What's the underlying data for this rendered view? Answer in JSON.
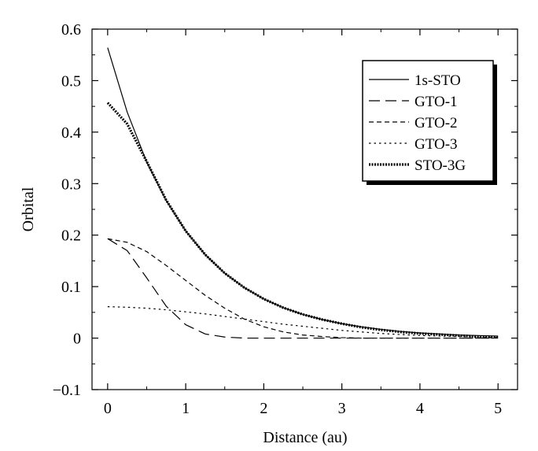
{
  "chart_data": {
    "type": "line",
    "title": "",
    "xlabel": "Distance (au)",
    "ylabel": "Orbital",
    "xlim": [
      -0.2,
      5.25
    ],
    "ylim": [
      -0.1,
      0.6
    ],
    "xticks": [
      0,
      1,
      2,
      3,
      4,
      5
    ],
    "xtick_labels": [
      "0",
      "1",
      "2",
      "3",
      "4",
      "5"
    ],
    "yticks": [
      -0.1,
      0,
      0.1,
      0.2,
      0.3,
      0.4,
      0.5,
      0.6
    ],
    "ytick_labels": [
      "−0.1",
      "0",
      "0.1",
      "0.2",
      "0.3",
      "0.4",
      "0.5",
      "0.6"
    ],
    "grid": false,
    "legend_position": "top-right",
    "x": [
      0,
      0.25,
      0.5,
      0.75,
      1.0,
      1.25,
      1.5,
      1.75,
      2.0,
      2.25,
      2.5,
      2.75,
      3.0,
      3.25,
      3.5,
      3.75,
      4.0,
      4.25,
      4.5,
      4.75,
      5.0
    ],
    "series": [
      {
        "name": "1s-STO",
        "dash": "solid",
        "values": [
          0.564,
          0.439,
          0.342,
          0.267,
          0.208,
          0.162,
          0.126,
          0.098,
          0.076,
          0.059,
          0.046,
          0.036,
          0.028,
          0.022,
          0.017,
          0.013,
          0.01,
          0.008,
          0.006,
          0.005,
          0.004
        ]
      },
      {
        "name": "GTO-1",
        "dash": "long-dash",
        "values": [
          0.193,
          0.17,
          0.117,
          0.062,
          0.026,
          0.008,
          0.002,
          0.0,
          0.0,
          0.0,
          0.0,
          0.0,
          0.0,
          0.0,
          0.0,
          0.0,
          0.0,
          0.0,
          0.0,
          0.0,
          0.0
        ]
      },
      {
        "name": "GTO-2",
        "dash": "dash",
        "values": [
          0.193,
          0.186,
          0.168,
          0.141,
          0.112,
          0.083,
          0.058,
          0.037,
          0.022,
          0.012,
          0.006,
          0.003,
          0.001,
          0.0,
          0.0,
          0.0,
          0.0,
          0.0,
          0.0,
          0.0,
          0.0
        ]
      },
      {
        "name": "GTO-3",
        "dash": "dot",
        "values": [
          0.061,
          0.06,
          0.058,
          0.055,
          0.051,
          0.047,
          0.042,
          0.037,
          0.032,
          0.027,
          0.023,
          0.019,
          0.015,
          0.012,
          0.009,
          0.007,
          0.005,
          0.004,
          0.003,
          0.002,
          0.001
        ]
      },
      {
        "name": "STO-3G",
        "dash": "heavy-dot",
        "values": [
          0.457,
          0.416,
          0.343,
          0.268,
          0.208,
          0.162,
          0.126,
          0.098,
          0.076,
          0.059,
          0.046,
          0.036,
          0.028,
          0.021,
          0.016,
          0.012,
          0.009,
          0.007,
          0.005,
          0.003,
          0.002
        ]
      }
    ]
  }
}
